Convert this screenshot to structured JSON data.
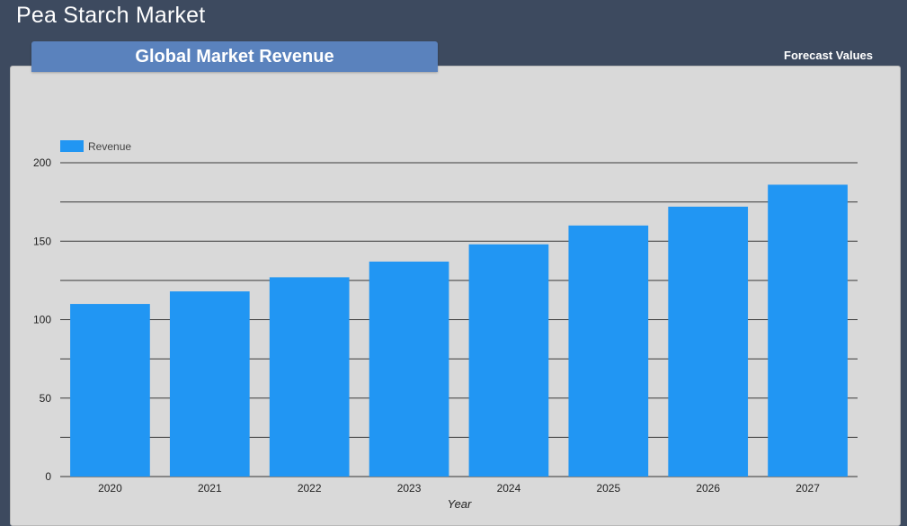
{
  "header": {
    "title": "Pea Starch Market",
    "tab_title": "Global Market Revenue",
    "forecast_label": "Forecast Values"
  },
  "colors": {
    "background": "#3d4a5f",
    "panel": "#d9d9d9",
    "tab": "#5a82bd",
    "bar": "#2196f3"
  },
  "chart_data": {
    "type": "bar",
    "categories": [
      "2020",
      "2021",
      "2022",
      "2023",
      "2024",
      "2025",
      "2026",
      "2027"
    ],
    "series": [
      {
        "name": "Revenue",
        "values": [
          110,
          118,
          127,
          137,
          148,
          160,
          172,
          186
        ]
      }
    ],
    "xlabel": "Year",
    "ylabel": "",
    "ylim": [
      0,
      200
    ],
    "yticks": [
      0,
      50,
      100,
      150,
      200
    ],
    "grid": true,
    "legend": "top-left"
  }
}
